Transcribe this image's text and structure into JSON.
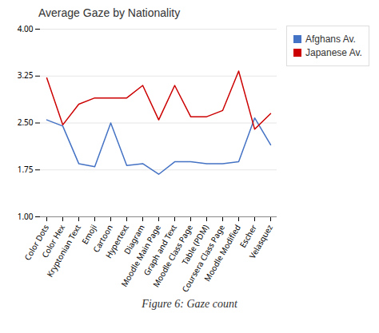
{
  "chart_data": {
    "type": "line",
    "title": "Average Gaze by Nationality",
    "caption": "Figure 6: Gaze count",
    "categories": [
      "Color Dots",
      "Color Hex",
      "Kryptonian Text",
      "Emoji",
      "Cartoon",
      "Hypertext",
      "Diagram",
      "Moodle Main Page",
      "Graph and Text",
      "Moodle Class Page",
      "Table (PDM)",
      "Coursera Class Page",
      "Moodle Modified",
      "Escher",
      "Velasquez"
    ],
    "series": [
      {
        "name": "Afghans Av.",
        "color": "#4472C4",
        "values": [
          2.55,
          2.45,
          1.85,
          1.8,
          2.5,
          1.82,
          1.85,
          1.68,
          1.88,
          1.88,
          1.85,
          1.85,
          1.88,
          2.58,
          2.15
        ]
      },
      {
        "name": "Japanese Av.",
        "color": "#CC0000",
        "values": [
          3.22,
          2.47,
          2.8,
          2.9,
          2.9,
          2.9,
          3.1,
          2.55,
          3.1,
          2.6,
          2.6,
          2.7,
          3.33,
          2.4,
          2.65
        ]
      }
    ],
    "ylim": [
      1.0,
      4.0
    ],
    "yticks": [
      {
        "value": 1.0,
        "label": "1.00"
      },
      1.75,
      {
        "value": 2.5,
        "label": "2.50"
      },
      3.25,
      {
        "value": 4.0,
        "label": "4.00"
      }
    ],
    "grid": true,
    "legend": "right"
  }
}
